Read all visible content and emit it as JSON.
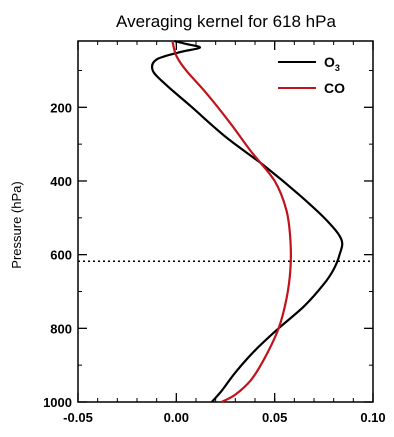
{
  "chart_data": {
    "type": "line",
    "title": "Averaging kernel for 618 hPa",
    "xlabel": "",
    "ylabel": "Pressure (hPa)",
    "xlim": [
      -0.05,
      0.1
    ],
    "ylim": [
      1000,
      20
    ],
    "y_inverted": true,
    "x_ticks": [
      "-0.05",
      "0.00",
      "0.05",
      "0.10"
    ],
    "y_ticks": [
      "200",
      "400",
      "600",
      "800",
      "1000"
    ],
    "grid": false,
    "legend_position": "top-right",
    "reference_line": {
      "pressure": 618,
      "style": "dotted",
      "color": "#000000"
    },
    "series": [
      {
        "name": "O3",
        "legend_main": "O",
        "legend_sub": "3",
        "color": "#000000",
        "points": [
          [
            -0.001,
            20
          ],
          [
            0.005,
            28
          ],
          [
            0.012,
            38
          ],
          [
            0.002,
            50
          ],
          [
            -0.01,
            70
          ],
          [
            -0.012,
            100
          ],
          [
            -0.005,
            140
          ],
          [
            0.008,
            200
          ],
          [
            0.025,
            280
          ],
          [
            0.045,
            360
          ],
          [
            0.063,
            440
          ],
          [
            0.077,
            510
          ],
          [
            0.084,
            560
          ],
          [
            0.083,
            600
          ],
          [
            0.08,
            640
          ],
          [
            0.075,
            680
          ],
          [
            0.065,
            740
          ],
          [
            0.052,
            800
          ],
          [
            0.04,
            860
          ],
          [
            0.03,
            920
          ],
          [
            0.023,
            970
          ],
          [
            0.018,
            1000
          ]
        ]
      },
      {
        "name": "CO",
        "legend_main": "CO",
        "legend_sub": "",
        "color": "#c0141c",
        "points": [
          [
            -0.002,
            20
          ],
          [
            0.0,
            60
          ],
          [
            0.005,
            100
          ],
          [
            0.015,
            160
          ],
          [
            0.027,
            240
          ],
          [
            0.038,
            320
          ],
          [
            0.05,
            400
          ],
          [
            0.056,
            480
          ],
          [
            0.058,
            560
          ],
          [
            0.058,
            640
          ],
          [
            0.056,
            720
          ],
          [
            0.052,
            800
          ],
          [
            0.045,
            880
          ],
          [
            0.038,
            940
          ],
          [
            0.03,
            980
          ],
          [
            0.023,
            1000
          ]
        ]
      }
    ]
  }
}
